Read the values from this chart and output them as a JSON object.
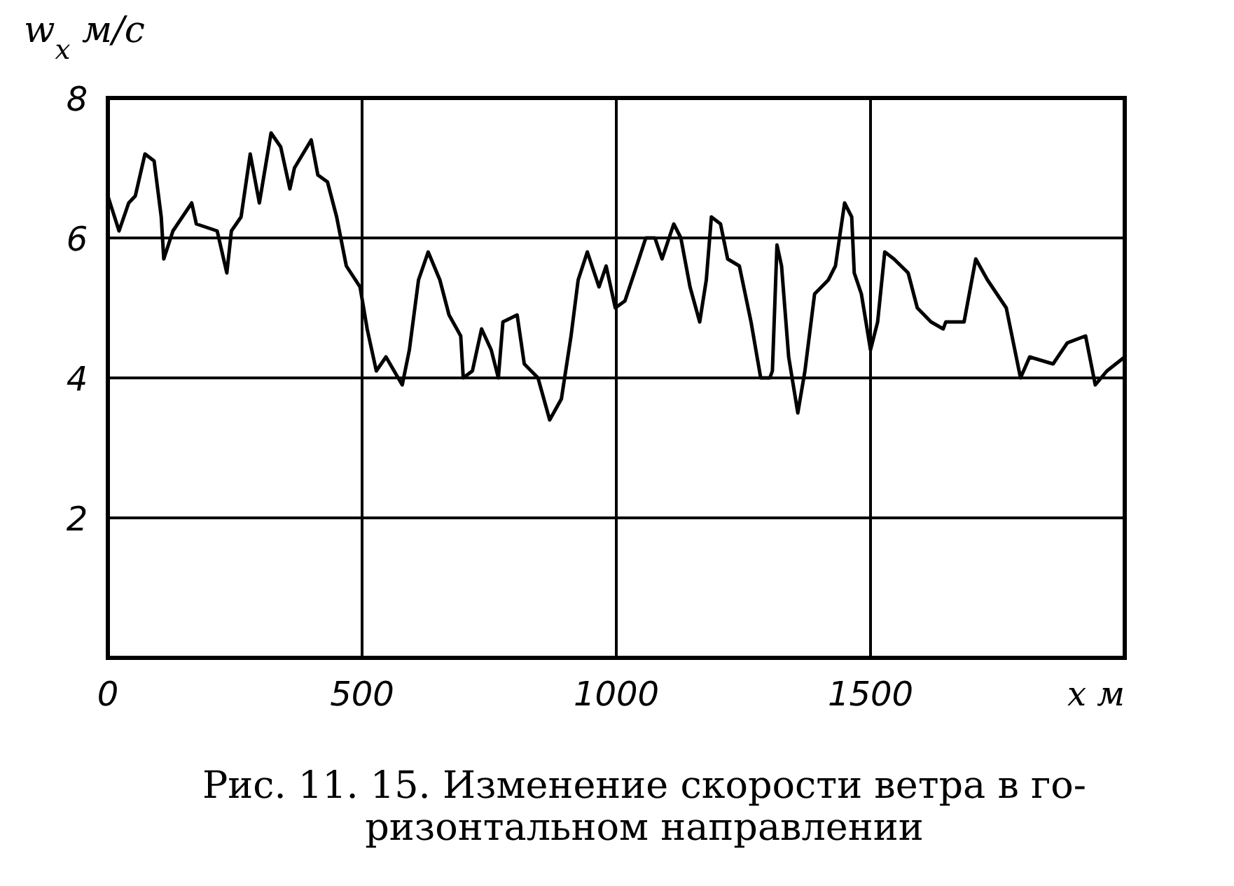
{
  "chart_data": {
    "type": "line",
    "ylabel": "w$_{x}$ м/с",
    "xlabel": "x м",
    "annotations": [
      "Рис. 11. 15. Изменение скорости ветра в го-\nризонтальном направлении"
    ],
    "xlim": [
      0,
      2000
    ],
    "ylim": [
      0,
      8
    ],
    "xticks": [
      0,
      500,
      1000,
      1500
    ],
    "yticks": [
      2,
      4,
      6,
      8
    ],
    "grid": true,
    "series": [
      {
        "color": "#000000",
        "x": [
          0,
          22,
          41,
          54,
          73,
          91,
          105,
          110,
          128,
          165,
          174,
          215,
          234,
          243,
          262,
          280,
          298,
          321,
          340,
          358,
          367,
          400,
          413,
          432,
          450,
          469,
          496,
          510,
          528,
          547,
          579,
          593,
          611,
          630,
          653,
          671,
          694,
          699,
          717,
          735,
          754,
          768,
          777,
          805,
          819,
          846,
          869,
          892,
          911,
          925,
          943,
          966,
          980,
          998,
          1017,
          1040,
          1058,
          1076,
          1090,
          1113,
          1127,
          1145,
          1164,
          1177,
          1187,
          1205,
          1219,
          1242,
          1265,
          1284,
          1302,
          1307,
          1316,
          1325,
          1339,
          1357,
          1371,
          1390,
          1417,
          1431,
          1449,
          1463,
          1468,
          1482,
          1500,
          1514,
          1528,
          1546,
          1574,
          1592,
          1619,
          1643,
          1648,
          1684,
          1707,
          1730,
          1767,
          1795,
          1813,
          1859,
          1887,
          1923,
          1942,
          1965,
          2000
        ],
        "values": [
          6.6,
          6.1,
          6.5,
          6.6,
          7.2,
          7.1,
          6.3,
          5.7,
          6.1,
          6.5,
          6.2,
          6.1,
          5.5,
          6.1,
          6.3,
          7.2,
          6.5,
          7.5,
          7.3,
          6.7,
          7.0,
          7.4,
          6.9,
          6.8,
          6.3,
          5.6,
          5.3,
          4.7,
          4.1,
          4.3,
          3.9,
          4.4,
          5.4,
          5.8,
          5.4,
          4.9,
          4.6,
          4.0,
          4.1,
          4.7,
          4.4,
          4.0,
          4.8,
          4.9,
          4.2,
          4.0,
          3.4,
          3.7,
          4.6,
          5.4,
          5.8,
          5.3,
          5.6,
          5.0,
          5.1,
          5.6,
          6.0,
          6.0,
          5.7,
          6.2,
          6.0,
          5.3,
          4.8,
          5.4,
          6.3,
          6.2,
          5.7,
          5.6,
          4.8,
          4.0,
          4.0,
          4.1,
          5.9,
          5.6,
          4.3,
          3.5,
          4.1,
          5.2,
          5.4,
          5.6,
          6.5,
          6.3,
          5.5,
          5.2,
          4.4,
          4.8,
          5.8,
          5.7,
          5.5,
          5.0,
          4.8,
          4.7,
          4.8,
          4.8,
          5.7,
          5.4,
          5.0,
          4.0,
          4.3,
          4.2,
          4.5,
          4.6,
          3.9,
          4.1,
          4.3
        ]
      }
    ]
  }
}
